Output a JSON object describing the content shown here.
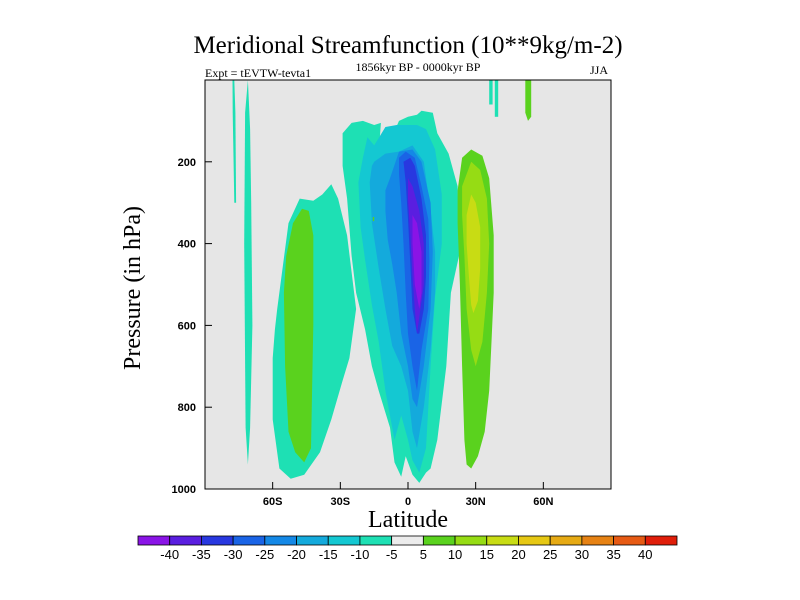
{
  "chart_data": {
    "type": "contour",
    "title": "Meridional Streamfunction (10**9kg/m-2)",
    "subtitle_left": "Expt = tEVTW-tevta1",
    "subtitle_center": "1856kyr BP - 0000kyr BP",
    "subtitle_right": "JJA",
    "xlabel": "Latitude",
    "ylabel": "Pressure (in hPa)",
    "xlim": [
      -90,
      90
    ],
    "ylim": [
      1000,
      0
    ],
    "xticks": [
      {
        "value": -60,
        "label": "60S"
      },
      {
        "value": -30,
        "label": "30S"
      },
      {
        "value": 0,
        "label": "0"
      },
      {
        "value": 30,
        "label": "30N"
      },
      {
        "value": 60,
        "label": "60N"
      }
    ],
    "yticks": [
      {
        "value": 200,
        "label": "200"
      },
      {
        "value": 400,
        "label": "400"
      },
      {
        "value": 600,
        "label": "600"
      },
      {
        "value": 800,
        "label": "800"
      },
      {
        "value": 1000,
        "label": "1000"
      }
    ],
    "background_color": "#e6e6e6",
    "colorbar": {
      "levels": [
        "-40",
        "-35",
        "-30",
        "-25",
        "-20",
        "-15",
        "-10",
        "-5",
        "5",
        "10",
        "15",
        "20",
        "25",
        "30",
        "35",
        "40"
      ],
      "colors": [
        "#8a14e6",
        "#5a1ee0",
        "#2838e0",
        "#1a64e6",
        "#1488e6",
        "#14aadc",
        "#14c8d2",
        "#1ee0b4",
        "#ececec",
        "#5ad21e",
        "#96dc14",
        "#c8dc14",
        "#e6c814",
        "#e6aa14",
        "#e68214",
        "#e65a14",
        "#e01e0a"
      ]
    },
    "regions": [
      {
        "name": "cyan-strip-80S",
        "level": "-5",
        "color": "#1ee0b4",
        "lat": [
          -77,
          -76.5,
          -76.2,
          -77,
          -77.7,
          -77.8
        ],
        "p": [
          0,
          80,
          300,
          300,
          80,
          0
        ]
      },
      {
        "name": "cyan-strip-70S",
        "level": "-5",
        "color": "#1ee0b4",
        "lat": [
          -71,
          -70,
          -69.5,
          -69,
          -70,
          -71,
          -72,
          -72.6,
          -72.2
        ],
        "p": [
          0,
          120,
          300,
          600,
          850,
          940,
          850,
          400,
          80
        ]
      },
      {
        "name": "cyan-southern",
        "level": "-5",
        "color": "#1ee0b4",
        "lat": [
          -58,
          -53,
          -48,
          -42,
          -38,
          -34,
          -31,
          -27,
          -23,
          -26,
          -29,
          -34,
          -39,
          -46,
          -52,
          -57,
          -60,
          -60,
          -59
        ],
        "p": [
          560,
          350,
          290,
          295,
          280,
          255,
          290,
          380,
          560,
          680,
          735,
          830,
          910,
          965,
          975,
          950,
          830,
          680,
          610
        ]
      },
      {
        "name": "green-southern",
        "level": "5",
        "color": "#5ad21e",
        "lat": [
          -54,
          -51,
          -47,
          -44,
          -42,
          -42,
          -43,
          -46,
          -50,
          -53,
          -54.5,
          -55
        ],
        "p": [
          430,
          350,
          315,
          320,
          380,
          600,
          900,
          935,
          910,
          860,
          700,
          520
        ]
      },
      {
        "name": "cyan-tropics",
        "level": "-5",
        "color": "#1ee0b4",
        "lat": [
          -29,
          -25,
          -20,
          -15,
          -12,
          -13,
          -8,
          -4,
          0,
          4,
          6,
          11,
          13,
          18,
          22,
          23,
          19,
          17,
          13,
          10,
          8,
          5,
          2,
          -1,
          -3,
          -6,
          -8,
          -13,
          -16,
          -19,
          -23,
          -25,
          -27,
          -29
        ],
        "p": [
          130,
          105,
          100,
          110,
          105,
          180,
          150,
          100,
          90,
          85,
          75,
          80,
          130,
          180,
          260,
          420,
          520,
          700,
          880,
          950,
          960,
          985,
          965,
          920,
          970,
          935,
          850,
          760,
          700,
          610,
          520,
          430,
          290,
          210
        ]
      },
      {
        "name": "blue1",
        "level": "-10",
        "color": "#14c8d2",
        "lat": [
          -18,
          -15,
          -10,
          -5,
          0,
          4,
          8,
          12,
          15,
          15,
          12,
          10,
          8,
          5,
          2,
          0,
          -3,
          -6,
          -10,
          -13,
          -16,
          -19,
          -21,
          -22,
          -20
        ],
        "p": [
          140,
          160,
          115,
          110,
          110,
          110,
          120,
          170,
          280,
          400,
          530,
          700,
          900,
          960,
          930,
          880,
          820,
          880,
          760,
          640,
          550,
          440,
          360,
          250,
          190
        ]
      },
      {
        "name": "blue2",
        "level": "-15",
        "color": "#14aadc",
        "lat": [
          -15,
          -10,
          -4,
          2,
          7,
          10,
          12,
          12,
          10,
          7,
          4,
          2,
          0,
          -3,
          -7,
          -10,
          -13,
          -16,
          -17,
          -16
        ],
        "p": [
          200,
          180,
          175,
          160,
          200,
          320,
          420,
          520,
          660,
          800,
          900,
          860,
          760,
          700,
          650,
          560,
          460,
          350,
          250,
          210
        ]
      },
      {
        "name": "blue3",
        "level": "-20",
        "color": "#1488e6",
        "lat": [
          -8,
          -4,
          2,
          6,
          10,
          11,
          10,
          7,
          4,
          2,
          0,
          -3,
          -5,
          -7,
          -9,
          -10,
          -10
        ],
        "p": [
          240,
          175,
          170,
          200,
          300,
          420,
          560,
          700,
          800,
          780,
          700,
          620,
          520,
          450,
          390,
          320,
          270
        ]
      },
      {
        "name": "blue4",
        "level": "-25",
        "color": "#1a64e6",
        "lat": [
          -4,
          -1,
          3,
          6,
          9,
          9.5,
          9,
          6,
          4,
          2,
          0,
          -1,
          -2,
          -3,
          -4
        ],
        "p": [
          190,
          175,
          190,
          260,
          340,
          440,
          560,
          660,
          760,
          700,
          620,
          520,
          400,
          300,
          230
        ]
      },
      {
        "name": "blue5",
        "level": "-30",
        "color": "#2838e0",
        "lat": [
          -2,
          1,
          3,
          6,
          8,
          8,
          7,
          5,
          4,
          2,
          1,
          0,
          -1
        ],
        "p": [
          200,
          190,
          210,
          290,
          380,
          480,
          560,
          620,
          620,
          560,
          450,
          340,
          250
        ]
      },
      {
        "name": "blue6",
        "level": "-35",
        "color": "#5a1ee0",
        "lat": [
          0,
          2,
          5,
          7,
          7,
          5,
          4,
          3,
          2,
          1,
          0
        ],
        "p": [
          240,
          260,
          320,
          400,
          500,
          580,
          620,
          560,
          480,
          380,
          290
        ]
      },
      {
        "name": "purple",
        "level": "-40",
        "color": "#8a14e6",
        "lat": [
          2,
          4,
          6,
          6,
          5,
          3,
          2
        ],
        "p": [
          330,
          350,
          420,
          520,
          560,
          500,
          400
        ]
      },
      {
        "name": "green-northern",
        "level": "5",
        "color": "#5ad21e",
        "lat": [
          22,
          24,
          28,
          33,
          36,
          38,
          38,
          37,
          36,
          34,
          31,
          28,
          26,
          25,
          24,
          23,
          22
        ],
        "p": [
          270,
          190,
          170,
          185,
          240,
          380,
          520,
          640,
          760,
          860,
          920,
          950,
          940,
          880,
          700,
          500,
          350
        ]
      },
      {
        "name": "yellowgreen",
        "level": "10",
        "color": "#96dc14",
        "lat": [
          24,
          28,
          32,
          35,
          36,
          35,
          33,
          30,
          28,
          26,
          25,
          24
        ],
        "p": [
          260,
          200,
          220,
          290,
          400,
          520,
          640,
          700,
          660,
          560,
          430,
          330
        ]
      },
      {
        "name": "yellow",
        "level": "15",
        "color": "#c8dc14",
        "lat": [
          26,
          28,
          30,
          32,
          32,
          31,
          29,
          28,
          27,
          26
        ],
        "p": [
          330,
          280,
          300,
          360,
          460,
          540,
          570,
          550,
          480,
          400
        ]
      },
      {
        "name": "cyan-strip-37N",
        "level": "-5",
        "color": "#1ee0b4",
        "lat": [
          36,
          37.5,
          37.5,
          36
        ],
        "p": [
          0,
          0,
          60,
          60
        ]
      },
      {
        "name": "cyan-strip-39N",
        "level": "-5",
        "color": "#1ee0b4",
        "lat": [
          38.5,
          40,
          40,
          38.5
        ],
        "p": [
          0,
          0,
          90,
          90
        ]
      },
      {
        "name": "green-strip-54N",
        "level": "5",
        "color": "#5ad21e",
        "lat": [
          52,
          54.6,
          54.6,
          53.2,
          52
        ],
        "p": [
          0,
          0,
          90,
          100,
          80
        ]
      },
      {
        "name": "green-dot-15S",
        "level": "5",
        "color": "#5ad21e",
        "lat": [
          -15.6,
          -15,
          -15,
          -15.6
        ],
        "p": [
          335,
          335,
          345,
          345
        ]
      }
    ]
  }
}
